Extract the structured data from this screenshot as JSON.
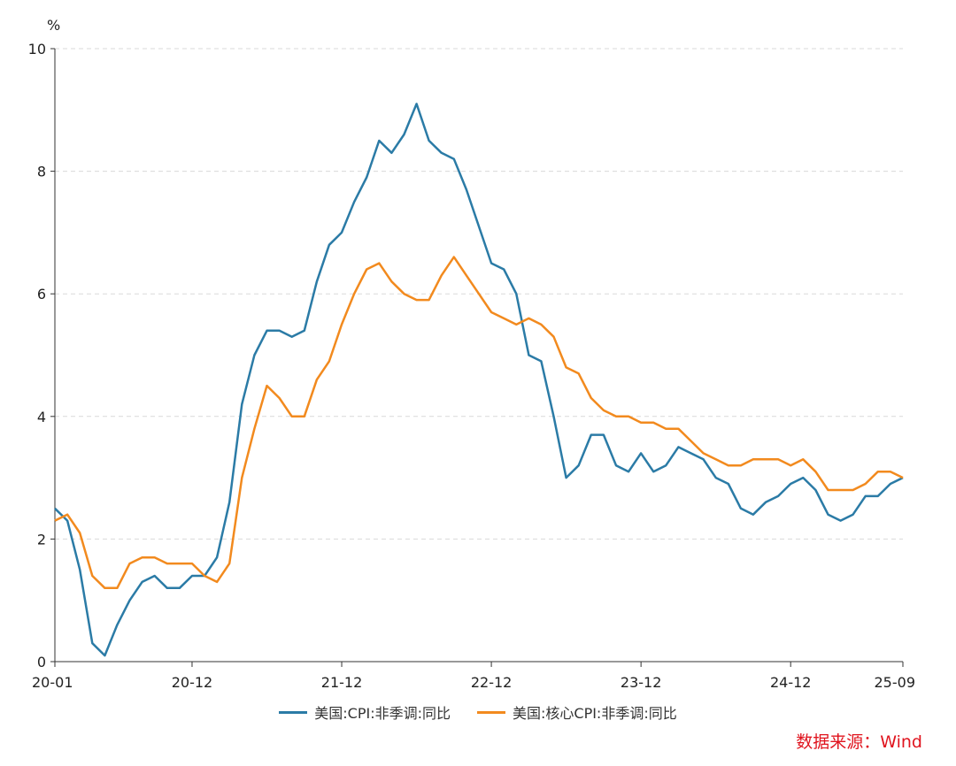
{
  "chart_data": {
    "type": "line",
    "title": "",
    "ylabel": "%",
    "xlabel": "",
    "ylim": [
      0,
      10
    ],
    "yticks": [
      "0",
      "2",
      "4",
      "6",
      "8",
      "10"
    ],
    "xticks": [
      "20-01",
      "20-12",
      "21-12",
      "22-12",
      "23-12",
      "24-12",
      "25-09"
    ],
    "x_start": "2020-01",
    "x_end": "2025-09",
    "grid": "horizontal dashed",
    "legend_position": "bottom",
    "series": [
      {
        "name": "美国:CPI:非季调:同比",
        "color": "#2b7ba6",
        "values": [
          2.5,
          2.3,
          1.5,
          0.3,
          0.1,
          0.6,
          1.0,
          1.3,
          1.4,
          1.2,
          1.2,
          1.4,
          1.4,
          1.7,
          2.6,
          4.2,
          5.0,
          5.4,
          5.4,
          5.3,
          5.4,
          6.2,
          6.8,
          7.0,
          7.5,
          7.9,
          8.5,
          8.3,
          8.6,
          9.1,
          8.5,
          8.3,
          8.2,
          7.7,
          7.1,
          6.5,
          6.4,
          6.0,
          5.0,
          4.9,
          4.0,
          3.0,
          3.2,
          3.7,
          3.7,
          3.2,
          3.1,
          3.4,
          3.1,
          3.2,
          3.5,
          3.4,
          3.3,
          3.0,
          2.9,
          2.5,
          2.4,
          2.6,
          2.7,
          2.9,
          3.0,
          2.8,
          2.4,
          2.3,
          2.4,
          2.7,
          2.7,
          2.9,
          3.0
        ]
      },
      {
        "name": "美国:核心CPI:非季调:同比",
        "color": "#f28a1e",
        "values": [
          2.3,
          2.4,
          2.1,
          1.4,
          1.2,
          1.2,
          1.6,
          1.7,
          1.7,
          1.6,
          1.6,
          1.6,
          1.4,
          1.3,
          1.6,
          3.0,
          3.8,
          4.5,
          4.3,
          4.0,
          4.0,
          4.6,
          4.9,
          5.5,
          6.0,
          6.4,
          6.5,
          6.2,
          6.0,
          5.9,
          5.9,
          6.3,
          6.6,
          6.3,
          6.0,
          5.7,
          5.6,
          5.5,
          5.6,
          5.5,
          5.3,
          4.8,
          4.7,
          4.3,
          4.1,
          4.0,
          4.0,
          3.9,
          3.9,
          3.8,
          3.8,
          3.6,
          3.4,
          3.3,
          3.2,
          3.2,
          3.3,
          3.3,
          3.3,
          3.2,
          3.3,
          3.1,
          2.8,
          2.8,
          2.8,
          2.9,
          3.1,
          3.1,
          3.0
        ]
      }
    ]
  },
  "source": "数据来源：Wind"
}
